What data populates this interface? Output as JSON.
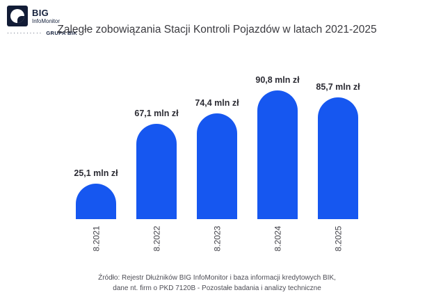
{
  "logo": {
    "brand": "BIG",
    "sub": "InfoMonitor",
    "dots": "···········",
    "group": "GRUPA BIK"
  },
  "title": "Zaległe zobowiązania Stacji Kontroli Pojazdów w latach 2021-2025",
  "chart_data": {
    "type": "bar",
    "title": "Zaległe zobowiązania Stacji Kontroli Pojazdów w latach 2021-2025",
    "categories": [
      "8.2021",
      "8.2022",
      "8.2023",
      "8.2024",
      "8.2025"
    ],
    "values": [
      25.1,
      67.1,
      74.4,
      90.8,
      85.7
    ],
    "value_labels": [
      "25,1 mln zł",
      "67,1 mln zł",
      "74,4 mln zł",
      "90,8 mln zł",
      "85,7 mln zł"
    ],
    "unit": "mln zł",
    "bar_color": "#1657f0",
    "ylim": [
      0,
      100
    ],
    "grid": false,
    "legend": "none",
    "category_label_rotation": 90
  },
  "footer": {
    "line1": "Źródło: Rejestr Dłużników BIG InfoMonitor i baza informacji kredytowych BIK,",
    "line2": "dane nt. firm o PKD 7120B - Pozostałe badania i analizy techniczne"
  }
}
